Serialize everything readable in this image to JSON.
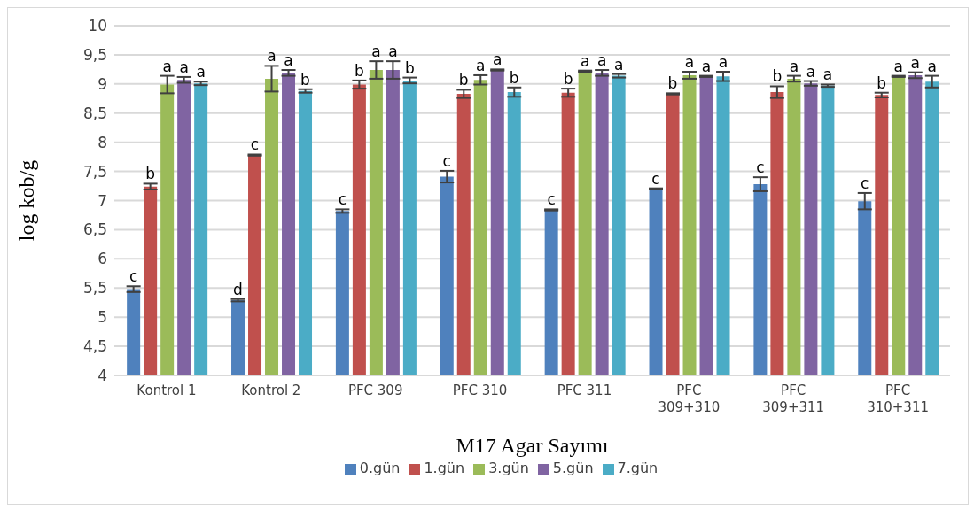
{
  "chart_data": {
    "type": "bar",
    "xlabel": "M17 Agar Sayımı",
    "ylabel": "log kob/g",
    "categories": [
      "Kontrol 1",
      "Kontrol 2",
      "PFC 309",
      "PFC 310",
      "PFC 311",
      "PFC 309+310",
      "PFC 309+311",
      "PFC 310+311"
    ],
    "series": [
      {
        "name": "0.gün",
        "color": "#4f81bd",
        "values": [
          5.48,
          5.29,
          6.82,
          7.41,
          6.84,
          7.2,
          7.28,
          6.99
        ],
        "errors": [
          0.05,
          0.02,
          0.03,
          0.1,
          0.01,
          0.01,
          0.12,
          0.14
        ],
        "value_labels": [
          "c",
          "d",
          "c",
          "c",
          "c",
          "c",
          "c",
          "c"
        ]
      },
      {
        "name": "1.gün",
        "color": "#c0504d",
        "values": [
          7.24,
          7.78,
          8.99,
          8.83,
          8.85,
          8.83,
          8.86,
          8.81
        ],
        "errors": [
          0.05,
          0.01,
          0.07,
          0.07,
          0.07,
          0.01,
          0.1,
          0.04
        ],
        "value_labels": [
          "b",
          "c",
          "b",
          "b",
          "b",
          "b",
          "b",
          "b"
        ]
      },
      {
        "name": "3.gün",
        "color": "#9bbb59",
        "values": [
          8.99,
          9.09,
          9.24,
          9.07,
          9.22,
          9.15,
          9.09,
          9.13
        ],
        "errors": [
          0.15,
          0.22,
          0.15,
          0.08,
          0.01,
          0.06,
          0.05,
          0.01
        ],
        "value_labels": [
          "a",
          "a",
          "a",
          "a",
          "a",
          "a",
          "a",
          "a"
        ]
      },
      {
        "name": "5.gün",
        "color": "#8064a2",
        "values": [
          9.07,
          9.19,
          9.24,
          9.24,
          9.19,
          9.13,
          9.01,
          9.15
        ],
        "errors": [
          0.05,
          0.05,
          0.15,
          0.01,
          0.05,
          0.01,
          0.04,
          0.05
        ],
        "value_labels": [
          "a",
          "a",
          "a",
          "a",
          "a",
          "a",
          "a",
          "a"
        ]
      },
      {
        "name": "7.gün",
        "color": "#4bacc6",
        "values": [
          9.01,
          8.88,
          9.06,
          8.86,
          9.14,
          9.13,
          8.97,
          9.04
        ],
        "errors": [
          0.03,
          0.03,
          0.05,
          0.08,
          0.03,
          0.08,
          0.02,
          0.1
        ],
        "value_labels": [
          "a",
          "b",
          "b",
          "b",
          "a",
          "a",
          "a",
          "a"
        ]
      }
    ],
    "ylim": [
      4,
      10
    ],
    "yticks": [
      4,
      {
        "value": 4.5,
        "label": "4,5"
      },
      5,
      {
        "value": 5.5,
        "label": "5,5"
      },
      6,
      {
        "value": 6.5,
        "label": "6,5"
      },
      7,
      {
        "value": 7.5,
        "label": "7,5"
      },
      8,
      {
        "value": 8.5,
        "label": "8,5"
      },
      9,
      {
        "value": 9.5,
        "label": "9,5"
      },
      10
    ],
    "grid": "y",
    "legend": "bottom"
  }
}
